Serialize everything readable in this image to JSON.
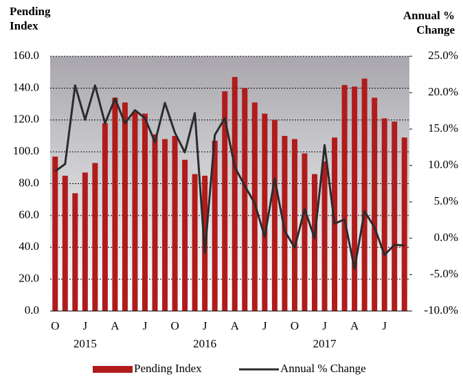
{
  "chart_data": {
    "type": "bar-line",
    "y_title": "Pending Index",
    "y2_title": "Annual % Change",
    "categories": [
      "O",
      null,
      null,
      "J",
      null,
      null,
      "A",
      null,
      null,
      "J",
      null,
      null,
      "O",
      null,
      null,
      "J",
      null,
      null,
      "A",
      null,
      null,
      "J",
      null,
      null,
      "O",
      null,
      null,
      "J",
      null,
      null,
      "A",
      null,
      null,
      "J",
      null,
      null
    ],
    "year_labels": [
      "2015",
      "2016",
      "2017"
    ],
    "series": [
      {
        "name": "Pending Index",
        "color": "#b01c1c",
        "values": [
          97,
          85,
          74,
          87,
          93,
          118,
          134,
          131,
          125,
          124,
          111,
          108,
          110,
          95,
          86,
          85,
          107,
          138,
          147,
          140,
          131,
          124,
          120,
          110,
          108,
          99,
          86,
          94,
          109,
          142,
          141,
          146,
          134,
          121,
          119,
          109
        ]
      },
      {
        "name": "Annual % Change",
        "color": "#2b2b2b",
        "axis": "y2",
        "values": [
          9.2,
          10.2,
          21.0,
          16.3,
          21.0,
          15.8,
          19.2,
          15.8,
          17.6,
          16.5,
          13.2,
          18.6,
          14.5,
          11.8,
          17.2,
          -2.0,
          14.2,
          16.5,
          9.8,
          7.2,
          4.8,
          0.2,
          8.2,
          1.0,
          -1.3,
          4.0,
          0.0,
          12.8,
          2.0,
          2.6,
          -4.2,
          3.7,
          1.5,
          -2.3,
          -0.9,
          -1.0
        ]
      }
    ],
    "ylim": [
      0,
      160
    ],
    "yticks": [
      {
        "value": 0,
        "label": "0.0"
      },
      {
        "value": 20,
        "label": "20.0"
      },
      {
        "value": 40,
        "label": "40.0"
      },
      {
        "value": 60,
        "label": "60.0"
      },
      {
        "value": 80,
        "label": "80.0"
      },
      {
        "value": 100,
        "label": "100.0"
      },
      {
        "value": 120,
        "label": "120.0"
      },
      {
        "value": 140,
        "label": "140.0"
      },
      {
        "value": 160,
        "label": "160.0"
      }
    ],
    "y2lim": [
      -10,
      25
    ],
    "y2ticks": [
      {
        "value": -10,
        "label": "-10.0%"
      },
      {
        "value": -5,
        "label": "-5.0%"
      },
      {
        "value": 0,
        "label": "0.0%"
      },
      {
        "value": 5,
        "label": "5.0%"
      },
      {
        "value": 10,
        "label": "10.0%"
      },
      {
        "value": 15,
        "label": "15.0%"
      },
      {
        "value": 20,
        "label": "20.0%"
      },
      {
        "value": 25,
        "label": "25.0%"
      }
    ],
    "grid": true
  }
}
